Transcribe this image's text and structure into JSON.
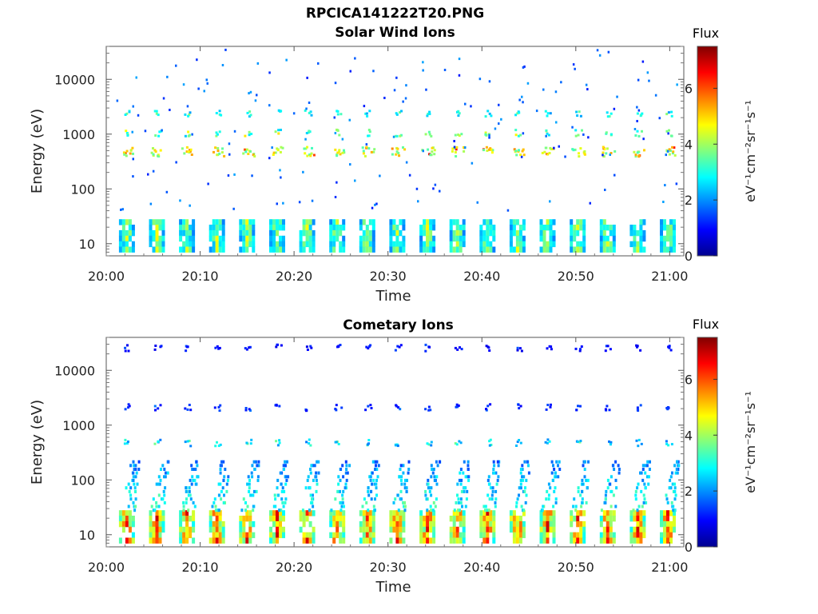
{
  "figure": {
    "title": "RPCICA141222T20.PNG"
  },
  "chart_data": [
    {
      "type": "heatmap",
      "title": "Solar Wind Ions",
      "xlabel": "Time",
      "ylabel": "Energy (eV)",
      "x_ticks": [
        "20:00",
        "20:10",
        "20:20",
        "20:30",
        "20:40",
        "20:50",
        "21:00"
      ],
      "y_ticks": [
        "10",
        "100",
        "1000",
        "10000"
      ],
      "y_scale": "log",
      "ylim": [
        6,
        40000
      ],
      "xlim_minutes_after_20_00": [
        0,
        61.5
      ],
      "colorbar": {
        "title": "Flux",
        "label": "eV⁻¹cm⁻²sr⁻¹s⁻¹",
        "ticks": [
          "0",
          "2",
          "4",
          "6"
        ],
        "range": [
          0,
          7.5
        ],
        "colormap": "jet"
      },
      "sweep_period_min": 3.2,
      "first_sweep_min": 2.2,
      "sweep_count": 19,
      "features": [
        {
          "name": "main beam",
          "energy_eV": 500,
          "flux": 4.3
        },
        {
          "name": "upper line",
          "energy_eV": 1100,
          "flux": 3.2
        },
        {
          "name": "upper line",
          "energy_eV": 2500,
          "flux": 2.6
        },
        {
          "name": "low-energy band",
          "energy_eV": [
            7,
            28
          ],
          "flux": 3.8
        },
        {
          "name": "sparse noise",
          "energy_eV": [
            40,
            35000
          ],
          "flux": 1.8
        }
      ]
    },
    {
      "type": "heatmap",
      "title": "Cometary Ions",
      "xlabel": "Time",
      "ylabel": "Energy (eV)",
      "x_ticks": [
        "20:00",
        "20:10",
        "20:20",
        "20:30",
        "20:40",
        "20:50",
        "21:00"
      ],
      "y_ticks": [
        "10",
        "100",
        "1000",
        "10000"
      ],
      "y_scale": "log",
      "ylim": [
        6,
        40000
      ],
      "xlim_minutes_after_20_00": [
        0,
        61.5
      ],
      "colorbar": {
        "title": "Flux",
        "label": "eV⁻¹cm⁻²sr⁻¹s⁻¹",
        "ticks": [
          "0",
          "2",
          "4",
          "6"
        ],
        "range": [
          0,
          7.5
        ],
        "colormap": "jet"
      },
      "sweep_period_min": 3.2,
      "first_sweep_min": 2.2,
      "sweep_count": 19,
      "features": [
        {
          "name": "cometary band",
          "energy_eV": [
            7,
            28
          ],
          "flux": 5.6
        },
        {
          "name": "cometary plume",
          "energy_eV": [
            28,
            250
          ],
          "flux": 3.0
        },
        {
          "name": "mid line",
          "energy_eV": 500,
          "flux": 2.4
        },
        {
          "name": "upper line",
          "energy_eV": 2200,
          "flux": 1.2
        },
        {
          "name": "isolated high",
          "energy_eV": 27000,
          "flux": 1.0
        }
      ]
    }
  ]
}
